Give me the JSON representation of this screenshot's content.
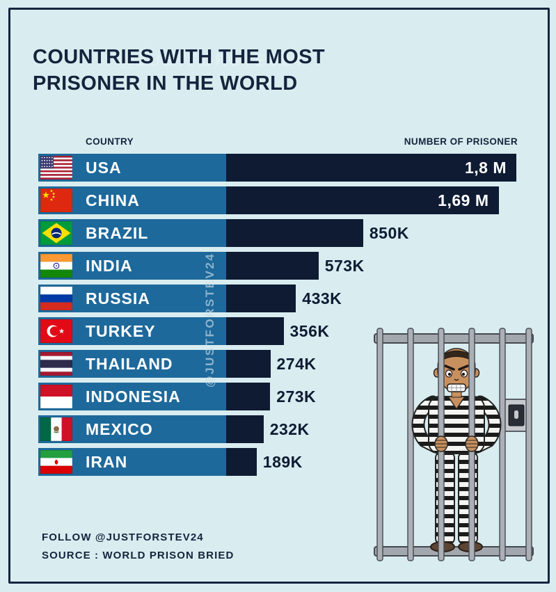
{
  "page": {
    "background": "#d9edf0",
    "frame_color": "#142540"
  },
  "title": {
    "line1": "COUNTRIES WITH THE MOST",
    "line2": "PRISONER IN THE WORLD"
  },
  "columns": {
    "country": "COUNTRY",
    "value": "NUMBER OF PRISONER"
  },
  "watermark": {
    "vertical": "@JUSTFORSTEV24",
    "title_overlay": "@JUSTFORSTEV24"
  },
  "footer": {
    "follow": "FOLLOW @JUSTFORSTEV24",
    "source": "SOURCE : WORLD PRISON BRIED"
  },
  "colors": {
    "background": "#d9edf0",
    "frame": "#142540",
    "label_bar": "#1e699b",
    "value_bar": "#0e1b33",
    "heading_text": "#16233d",
    "bar_text": "#ffffff"
  },
  "chart_data": {
    "type": "bar",
    "orientation": "horizontal",
    "title": "COUNTRIES WITH THE MOST PRISONER IN THE WORLD",
    "xlabel": "NUMBER OF PRISONER",
    "categories": [
      "USA",
      "CHINA",
      "BRAZIL",
      "INDIA",
      "RUSSIA",
      "TURKEY",
      "THAILAND",
      "INDONESIA",
      "MEXICO",
      "IRAN"
    ],
    "values_thousands": [
      1800,
      1690,
      850,
      573,
      433,
      356,
      274,
      273,
      232,
      189
    ],
    "values_label": [
      "1,8 M",
      "1,69 M",
      "850K",
      "573K",
      "433K",
      "356K",
      "274K",
      "273K",
      "232K",
      "189K"
    ],
    "flags": [
      "us",
      "cn",
      "br",
      "in",
      "ru",
      "tr",
      "th",
      "id",
      "mx",
      "ir"
    ],
    "label_inside": [
      true,
      true,
      false,
      false,
      false,
      false,
      false,
      false,
      false,
      false
    ],
    "max_value_thousands": 1800,
    "axis_range_thousands": [
      0,
      1800
    ],
    "legend": "none",
    "grid": "off"
  },
  "illustration": {
    "name": "prisoner-behind-bars"
  }
}
